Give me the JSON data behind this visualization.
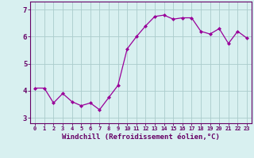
{
  "x": [
    0,
    1,
    2,
    3,
    4,
    5,
    6,
    7,
    8,
    9,
    10,
    11,
    12,
    13,
    14,
    15,
    16,
    17,
    18,
    19,
    20,
    21,
    22,
    23
  ],
  "y": [
    4.1,
    4.1,
    3.55,
    3.9,
    3.6,
    3.45,
    3.55,
    3.3,
    3.75,
    4.2,
    5.55,
    6.0,
    6.4,
    6.75,
    6.8,
    6.65,
    6.7,
    6.7,
    6.2,
    6.1,
    6.3,
    5.75,
    6.2,
    5.95
  ],
  "line_color": "#990099",
  "marker": "D",
  "marker_size": 2,
  "bg_color": "#d8f0f0",
  "grid_color": "#aacccc",
  "axis_color": "#660066",
  "xlabel": "Windchill (Refroidissement éolien,°C)",
  "xlabel_fontsize": 6.5,
  "ytick_labels": [
    "3",
    "4",
    "5",
    "6",
    "7"
  ],
  "ytick_values": [
    3,
    4,
    5,
    6,
    7
  ],
  "ylim": [
    2.8,
    7.3
  ],
  "xlim": [
    -0.5,
    23.5
  ],
  "xtick_fontsize": 5.0,
  "ytick_fontsize": 6.5
}
